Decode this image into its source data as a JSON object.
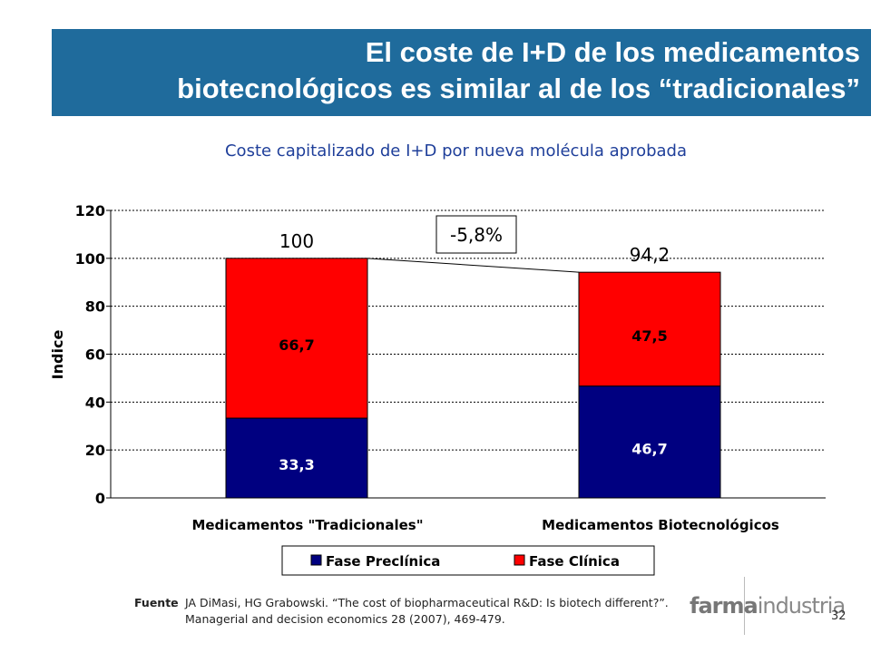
{
  "slide": {
    "title_line1": "El coste de I+D de los medicamentos",
    "title_line2": "biotecnológicos es similar al de los “tradicionales”",
    "page_number": "32",
    "source_label": "Fuente",
    "source_text": "JA DiMasi, HG Grabowski. “The cost of biopharmaceutical R&D: Is biotech different?”. Managerial and decision economics 28 (2007), 469-479.",
    "logo_bold": "farma",
    "logo_light": "industria"
  },
  "chart_data": {
    "type": "bar",
    "stacked": true,
    "title": "Coste capitalizado de I+D por nueva molécula aprobada",
    "ylabel": "Indice",
    "xlabel": "",
    "ylim": [
      0,
      120
    ],
    "yticks": [
      0,
      20,
      40,
      60,
      80,
      100,
      120
    ],
    "grid": true,
    "legend_position": "bottom",
    "categories": [
      "Medicamentos \"Tradicionales\"",
      "Medicamentos Biotecnológicos"
    ],
    "series": [
      {
        "name": "Fase Preclínica",
        "values": [
          33.3,
          46.7
        ],
        "labels": [
          "33,3",
          "46,7"
        ],
        "color": "#000080"
      },
      {
        "name": "Fase Clínica",
        "values": [
          66.7,
          47.5
        ],
        "labels": [
          "66,7",
          "47,5"
        ],
        "color": "#ff0000"
      }
    ],
    "totals": [
      100,
      94.2
    ],
    "total_labels": [
      "100",
      "94,2"
    ],
    "annotation": "-5,8%"
  }
}
